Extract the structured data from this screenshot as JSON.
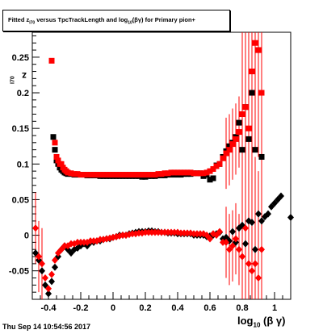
{
  "title": {
    "prefix": "Fitted  z",
    "z_sub": "I70",
    "middle": " versus TpcTrackLength and log",
    "log_sub": "10",
    "suffix": "(βγ) for Primary pion+"
  },
  "footer": "Thu Sep 14 10:54:56 2017",
  "axes": {
    "xlabel_main": "log",
    "xlabel_sub": "10",
    "xlabel_rest": "(β γ)",
    "ylabel_main": "z",
    "ylabel_sub": "I70"
  },
  "chart_data": {
    "type": "scatter",
    "xlim": [
      -0.5,
      1.1
    ],
    "ylim": [
      -0.09,
      0.285
    ],
    "xticks": [
      {
        "v": -0.4,
        "label": "-0.4"
      },
      {
        "v": -0.2,
        "label": "-0.2"
      },
      {
        "v": 0,
        "label": "0"
      },
      {
        "v": 0.2,
        "label": "0.2"
      },
      {
        "v": 0.4,
        "label": "0.4"
      },
      {
        "v": 0.6,
        "label": "0.6"
      },
      {
        "v": 0.8,
        "label": "0.8"
      },
      {
        "v": 1.0,
        "label": "1"
      }
    ],
    "yticks": [
      {
        "v": -0.05,
        "label": "-0.05"
      },
      {
        "v": 0,
        "label": "0"
      },
      {
        "v": 0.05,
        "label": "0.05"
      },
      {
        "v": 0.1,
        "label": "0.1"
      },
      {
        "v": 0.15,
        "label": "0.15"
      },
      {
        "v": 0.2,
        "label": "0.2"
      },
      {
        "v": 0.25,
        "label": "0.25"
      }
    ],
    "grid": false,
    "series": [
      {
        "color": "#000000",
        "marker": "square",
        "points": [
          [
            -0.37,
            0.138
          ],
          [
            -0.36,
            0.12
          ],
          [
            -0.35,
            0.105
          ],
          [
            -0.34,
            0.1
          ],
          [
            -0.33,
            0.095
          ],
          [
            -0.32,
            0.092
          ],
          [
            -0.31,
            0.09
          ],
          [
            -0.3,
            0.088
          ],
          [
            -0.29,
            0.087
          ],
          [
            -0.28,
            0.086
          ],
          [
            -0.26,
            0.086
          ],
          [
            -0.24,
            0.085
          ],
          [
            -0.22,
            0.085
          ],
          [
            -0.2,
            0.085
          ],
          [
            -0.18,
            0.085
          ],
          [
            -0.16,
            0.084
          ],
          [
            -0.14,
            0.084
          ],
          [
            -0.12,
            0.084
          ],
          [
            -0.1,
            0.084
          ],
          [
            -0.08,
            0.083
          ],
          [
            -0.06,
            0.083
          ],
          [
            -0.04,
            0.083
          ],
          [
            -0.02,
            0.083
          ],
          [
            0.0,
            0.083
          ],
          [
            0.02,
            0.083
          ],
          [
            0.04,
            0.083
          ],
          [
            0.06,
            0.083
          ],
          [
            0.08,
            0.083
          ],
          [
            0.1,
            0.083
          ],
          [
            0.12,
            0.083
          ],
          [
            0.14,
            0.083
          ],
          [
            0.16,
            0.083
          ],
          [
            0.18,
            0.082
          ],
          [
            0.2,
            0.082
          ],
          [
            0.22,
            0.083
          ],
          [
            0.24,
            0.083
          ],
          [
            0.26,
            0.083
          ],
          [
            0.28,
            0.084
          ],
          [
            0.3,
            0.084
          ],
          [
            0.32,
            0.084
          ],
          [
            0.34,
            0.085
          ],
          [
            0.36,
            0.085
          ],
          [
            0.38,
            0.085
          ],
          [
            0.4,
            0.085
          ],
          [
            0.42,
            0.085
          ],
          [
            0.44,
            0.086
          ],
          [
            0.46,
            0.086
          ],
          [
            0.48,
            0.086
          ],
          [
            0.5,
            0.087
          ],
          [
            0.52,
            0.087
          ],
          [
            0.54,
            0.087
          ],
          [
            0.56,
            0.083
          ],
          [
            0.58,
            0.085
          ],
          [
            0.6,
            0.078
          ],
          [
            0.62,
            0.08
          ],
          [
            0.64,
            0.098
          ],
          [
            0.66,
            0.1
          ],
          [
            0.68,
            0.11
          ],
          [
            0.7,
            0.118
          ],
          [
            0.72,
            0.125
          ],
          [
            0.74,
            0.13
          ],
          [
            0.76,
            0.138
          ],
          [
            0.78,
            0.158
          ],
          [
            0.8,
            0.12
          ],
          [
            0.82,
            0.18
          ],
          [
            0.84,
            0.135
          ],
          [
            0.86,
            0.2
          ],
          [
            0.88,
            0.12
          ],
          [
            0.9,
            0.26
          ],
          [
            0.92,
            0.11
          ]
        ]
      },
      {
        "color": "#ff0000",
        "marker": "square",
        "points": [
          [
            -0.38,
            0.245
          ],
          [
            -0.36,
            0.13
          ],
          [
            -0.35,
            0.11
          ],
          [
            -0.34,
            0.105
          ],
          [
            -0.33,
            0.1
          ],
          [
            -0.32,
            0.1
          ],
          [
            -0.31,
            0.095
          ],
          [
            -0.3,
            0.092
          ],
          [
            -0.29,
            0.09
          ],
          [
            -0.28,
            0.088
          ],
          [
            -0.26,
            0.087
          ],
          [
            -0.24,
            0.086
          ],
          [
            -0.22,
            0.086
          ],
          [
            -0.2,
            0.085
          ],
          [
            -0.18,
            0.085
          ],
          [
            -0.16,
            0.085
          ],
          [
            -0.14,
            0.085
          ],
          [
            -0.12,
            0.085
          ],
          [
            -0.1,
            0.085
          ],
          [
            -0.08,
            0.085
          ],
          [
            -0.06,
            0.085
          ],
          [
            -0.04,
            0.085
          ],
          [
            -0.02,
            0.085
          ],
          [
            0.0,
            0.085
          ],
          [
            0.02,
            0.085
          ],
          [
            0.04,
            0.085
          ],
          [
            0.06,
            0.085
          ],
          [
            0.08,
            0.085
          ],
          [
            0.1,
            0.085
          ],
          [
            0.12,
            0.085
          ],
          [
            0.14,
            0.085
          ],
          [
            0.16,
            0.085
          ],
          [
            0.18,
            0.085
          ],
          [
            0.2,
            0.085
          ],
          [
            0.22,
            0.085
          ],
          [
            0.24,
            0.085
          ],
          [
            0.26,
            0.085
          ],
          [
            0.28,
            0.086
          ],
          [
            0.3,
            0.086
          ],
          [
            0.32,
            0.087
          ],
          [
            0.34,
            0.087
          ],
          [
            0.36,
            0.088
          ],
          [
            0.38,
            0.088
          ],
          [
            0.4,
            0.088
          ],
          [
            0.42,
            0.088
          ],
          [
            0.44,
            0.088
          ],
          [
            0.46,
            0.088
          ],
          [
            0.48,
            0.088
          ],
          [
            0.5,
            0.087
          ],
          [
            0.52,
            0.087
          ],
          [
            0.54,
            0.087
          ],
          [
            0.56,
            0.087
          ],
          [
            0.58,
            0.088
          ],
          [
            0.6,
            0.09
          ],
          [
            0.62,
            0.093
          ],
          [
            0.64,
            0.097
          ],
          [
            0.66,
            0.1
          ],
          [
            0.68,
            0.108
          ],
          [
            0.7,
            0.115
          ],
          [
            0.72,
            0.12
          ],
          [
            0.74,
            0.128
          ],
          [
            0.76,
            0.135
          ],
          [
            0.78,
            0.145
          ],
          [
            0.8,
            0.17
          ],
          [
            0.82,
            0.18
          ],
          [
            0.84,
            0.15
          ],
          [
            0.86,
            0.23
          ],
          [
            0.88,
            0.27
          ],
          [
            0.9,
            0.26
          ],
          [
            0.92,
            0.2
          ]
        ]
      },
      {
        "color": "#000000",
        "marker": "diamond",
        "points": [
          [
            -0.48,
            -0.025
          ],
          [
            -0.46,
            -0.035
          ],
          [
            -0.44,
            -0.05
          ],
          [
            -0.42,
            -0.07
          ],
          [
            -0.4,
            -0.082
          ],
          [
            -0.38,
            -0.065
          ],
          [
            -0.36,
            -0.045
          ],
          [
            -0.34,
            -0.03
          ],
          [
            -0.32,
            -0.02
          ],
          [
            -0.3,
            -0.015
          ],
          [
            -0.28,
            -0.02
          ],
          [
            -0.26,
            -0.025
          ],
          [
            -0.24,
            -0.02
          ],
          [
            -0.22,
            -0.018
          ],
          [
            -0.2,
            -0.015
          ],
          [
            -0.18,
            -0.012
          ],
          [
            -0.16,
            -0.015
          ],
          [
            -0.14,
            -0.01
          ],
          [
            -0.12,
            -0.01
          ],
          [
            -0.1,
            -0.008
          ],
          [
            -0.08,
            -0.008
          ],
          [
            -0.06,
            -0.006
          ],
          [
            -0.04,
            -0.005
          ],
          [
            -0.02,
            -0.005
          ],
          [
            0.0,
            -0.003
          ],
          [
            0.02,
            -0.002
          ],
          [
            0.04,
            0.0
          ],
          [
            0.06,
            0.0
          ],
          [
            0.08,
            0.0
          ],
          [
            0.1,
            0.002
          ],
          [
            0.12,
            0.003
          ],
          [
            0.14,
            0.004
          ],
          [
            0.16,
            0.005
          ],
          [
            0.18,
            0.005
          ],
          [
            0.2,
            0.005
          ],
          [
            0.22,
            0.006
          ],
          [
            0.24,
            0.006
          ],
          [
            0.26,
            0.005
          ],
          [
            0.28,
            0.005
          ],
          [
            0.3,
            0.004
          ],
          [
            0.32,
            0.004
          ],
          [
            0.34,
            0.003
          ],
          [
            0.36,
            0.003
          ],
          [
            0.38,
            0.003
          ],
          [
            0.4,
            0.002
          ],
          [
            0.42,
            0.002
          ],
          [
            0.44,
            0.002
          ],
          [
            0.46,
            0.002
          ],
          [
            0.48,
            0.002
          ],
          [
            0.5,
            0.0
          ],
          [
            0.52,
            0.0
          ],
          [
            0.54,
            0.0
          ],
          [
            0.56,
            0.0
          ],
          [
            0.58,
            -0.002
          ],
          [
            0.6,
            -0.001
          ],
          [
            0.62,
            0.0
          ],
          [
            0.64,
            0.002
          ],
          [
            0.66,
            0.004
          ],
          [
            0.68,
            -0.005
          ],
          [
            0.7,
            -0.003
          ],
          [
            0.72,
            -0.008
          ],
          [
            0.74,
            0.005
          ],
          [
            0.76,
            -0.01
          ],
          [
            0.78,
            0.01
          ],
          [
            0.8,
            0.014
          ],
          [
            0.82,
            -0.012
          ],
          [
            0.84,
            0.02
          ],
          [
            0.86,
            0.018
          ],
          [
            0.88,
            -0.02
          ],
          [
            0.9,
            0.03
          ],
          [
            0.92,
            0.02
          ],
          [
            0.94,
            0.026
          ],
          [
            0.96,
            0.03
          ],
          [
            0.98,
            0.04
          ],
          [
            1.0,
            0.045
          ],
          [
            1.02,
            0.05
          ],
          [
            1.04,
            0.055
          ],
          [
            1.1,
            0.025
          ]
        ]
      },
      {
        "color": "#ff0000",
        "marker": "diamond",
        "points": [
          [
            -0.48,
            0.01
          ],
          [
            -0.46,
            -0.03
          ],
          [
            -0.44,
            -0.04
          ],
          [
            -0.42,
            -0.06
          ],
          [
            -0.4,
            -0.075
          ],
          [
            -0.38,
            -0.055
          ],
          [
            -0.36,
            -0.035
          ],
          [
            -0.34,
            -0.025
          ],
          [
            -0.32,
            -0.02
          ],
          [
            -0.3,
            -0.015
          ],
          [
            -0.28,
            -0.015
          ],
          [
            -0.26,
            -0.012
          ],
          [
            -0.24,
            -0.012
          ],
          [
            -0.22,
            -0.01
          ],
          [
            -0.2,
            -0.01
          ],
          [
            -0.18,
            -0.01
          ],
          [
            -0.16,
            -0.01
          ],
          [
            -0.14,
            -0.008
          ],
          [
            -0.12,
            -0.008
          ],
          [
            -0.1,
            -0.008
          ],
          [
            -0.08,
            -0.006
          ],
          [
            -0.06,
            -0.006
          ],
          [
            -0.04,
            -0.005
          ],
          [
            -0.02,
            -0.004
          ],
          [
            0.0,
            -0.003
          ],
          [
            0.02,
            -0.002
          ],
          [
            0.04,
            -0.001
          ],
          [
            0.06,
            0.0
          ],
          [
            0.08,
            0.0
          ],
          [
            0.1,
            0.001
          ],
          [
            0.12,
            0.002
          ],
          [
            0.14,
            0.002
          ],
          [
            0.16,
            0.003
          ],
          [
            0.18,
            0.003
          ],
          [
            0.2,
            0.004
          ],
          [
            0.22,
            0.004
          ],
          [
            0.24,
            0.004
          ],
          [
            0.26,
            0.004
          ],
          [
            0.28,
            0.004
          ],
          [
            0.3,
            0.004
          ],
          [
            0.32,
            0.004
          ],
          [
            0.34,
            0.004
          ],
          [
            0.36,
            0.004
          ],
          [
            0.38,
            0.004
          ],
          [
            0.4,
            0.004
          ],
          [
            0.42,
            0.003
          ],
          [
            0.44,
            0.003
          ],
          [
            0.46,
            0.003
          ],
          [
            0.48,
            0.003
          ],
          [
            0.5,
            0.002
          ],
          [
            0.52,
            0.002
          ],
          [
            0.54,
            0.002
          ],
          [
            0.56,
            0.002
          ],
          [
            0.58,
            0.0
          ],
          [
            0.6,
            -0.005
          ],
          [
            0.62,
            0.002
          ],
          [
            0.64,
            0.0
          ],
          [
            0.66,
            0.005
          ],
          [
            0.68,
            -0.01
          ],
          [
            0.7,
            -0.01
          ],
          [
            0.72,
            -0.02
          ],
          [
            0.74,
            -0.015
          ],
          [
            0.76,
            -0.005
          ],
          [
            0.78,
            -0.02
          ],
          [
            0.8,
            -0.03
          ],
          [
            0.82,
            0.01
          ],
          [
            0.84,
            -0.04
          ],
          [
            0.86,
            -0.05
          ],
          [
            0.88,
            -0.04
          ],
          [
            0.9,
            -0.06
          ],
          [
            0.92,
            -0.02
          ]
        ]
      }
    ]
  }
}
